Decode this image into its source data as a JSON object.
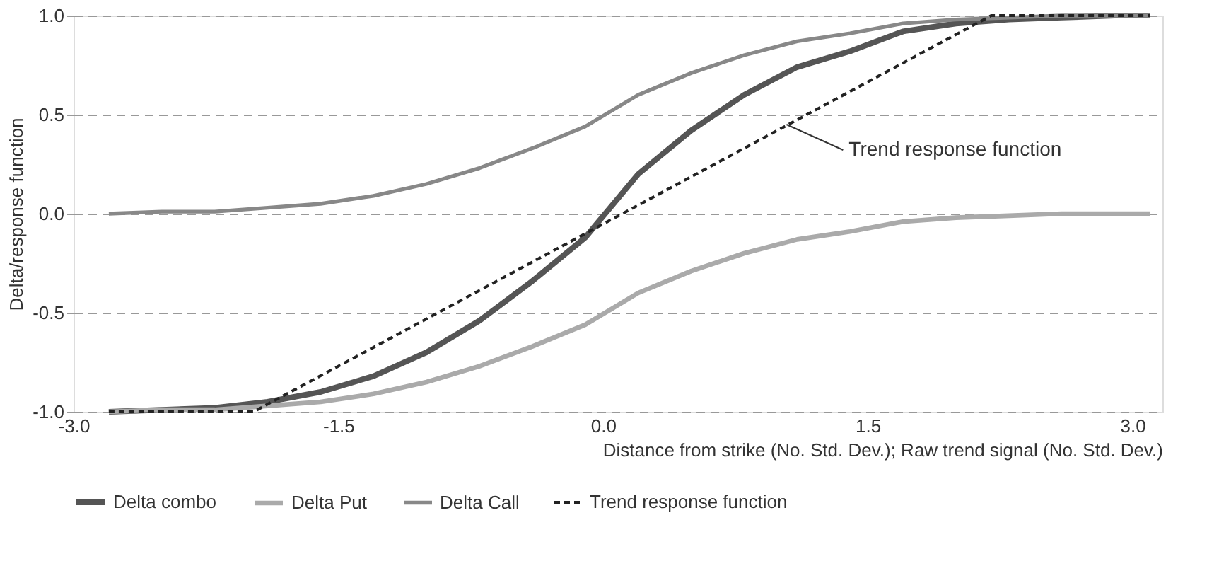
{
  "chart_data": {
    "type": "line",
    "xlabel": "Distance from strike (No. Std. Dev.); Raw trend signal (No. Std. Dev.)",
    "ylabel": "Delta/response function",
    "x": [
      -2.8,
      -2.5,
      -2.2,
      -1.9,
      -1.6,
      -1.3,
      -1.0,
      -0.7,
      -0.4,
      -0.1,
      0.2,
      0.5,
      0.8,
      1.1,
      1.4,
      1.7,
      2.0,
      2.3,
      2.6,
      2.9,
      3.1
    ],
    "series": [
      {
        "name": "Delta combo",
        "color": "#555555",
        "values": [
          -1.0,
          -0.99,
          -0.98,
          -0.95,
          -0.9,
          -0.82,
          -0.7,
          -0.54,
          -0.34,
          -0.12,
          0.2,
          0.42,
          0.6,
          0.74,
          0.82,
          0.92,
          0.96,
          0.98,
          0.99,
          1.0,
          1.0
        ]
      },
      {
        "name": "Delta Put",
        "color": "#aaaaaa",
        "values": [
          -1.0,
          -0.99,
          -0.99,
          -0.97,
          -0.95,
          -0.91,
          -0.85,
          -0.77,
          -0.67,
          -0.56,
          -0.4,
          -0.29,
          -0.2,
          -0.13,
          -0.09,
          -0.04,
          -0.02,
          -0.01,
          0.0,
          0.0,
          0.0
        ]
      },
      {
        "name": "Delta Call",
        "color": "#888888",
        "values": [
          0.0,
          0.01,
          0.01,
          0.03,
          0.05,
          0.09,
          0.15,
          0.23,
          0.33,
          0.44,
          0.6,
          0.71,
          0.8,
          0.87,
          0.91,
          0.96,
          0.98,
          0.99,
          1.0,
          1.0,
          1.0
        ]
      },
      {
        "name": "Trend response function",
        "color": "#222222",
        "line_style": "dashed",
        "x": [
          -2.8,
          -1.98,
          2.2,
          3.1
        ],
        "values": [
          -1.0,
          -1.0,
          1.0,
          1.0
        ]
      }
    ],
    "xlim": [
      -3.0,
      3.17
    ],
    "xticks": [
      {
        "value": -3.0,
        "label": "-3.0"
      },
      {
        "value": -1.5,
        "label": "-1.5"
      },
      {
        "value": 0.0,
        "label": "0.0"
      },
      {
        "value": 1.5,
        "label": "1.5"
      },
      {
        "value": 3.0,
        "label": "3.0"
      }
    ],
    "ylim": [
      -1.0,
      1.0
    ],
    "yticks": [
      {
        "value": -1.0,
        "label": "-1.0"
      },
      {
        "value": -0.5,
        "label": "-0.5"
      },
      {
        "value": 0.0,
        "label": "0.0"
      },
      {
        "value": 0.5,
        "label": "0.5"
      },
      {
        "value": 1.0,
        "label": "1.0"
      }
    ],
    "grid": "y",
    "legend": "bottom",
    "annotations": [
      {
        "text": "Trend response function",
        "x": 1.04,
        "y": 0.45
      }
    ]
  }
}
